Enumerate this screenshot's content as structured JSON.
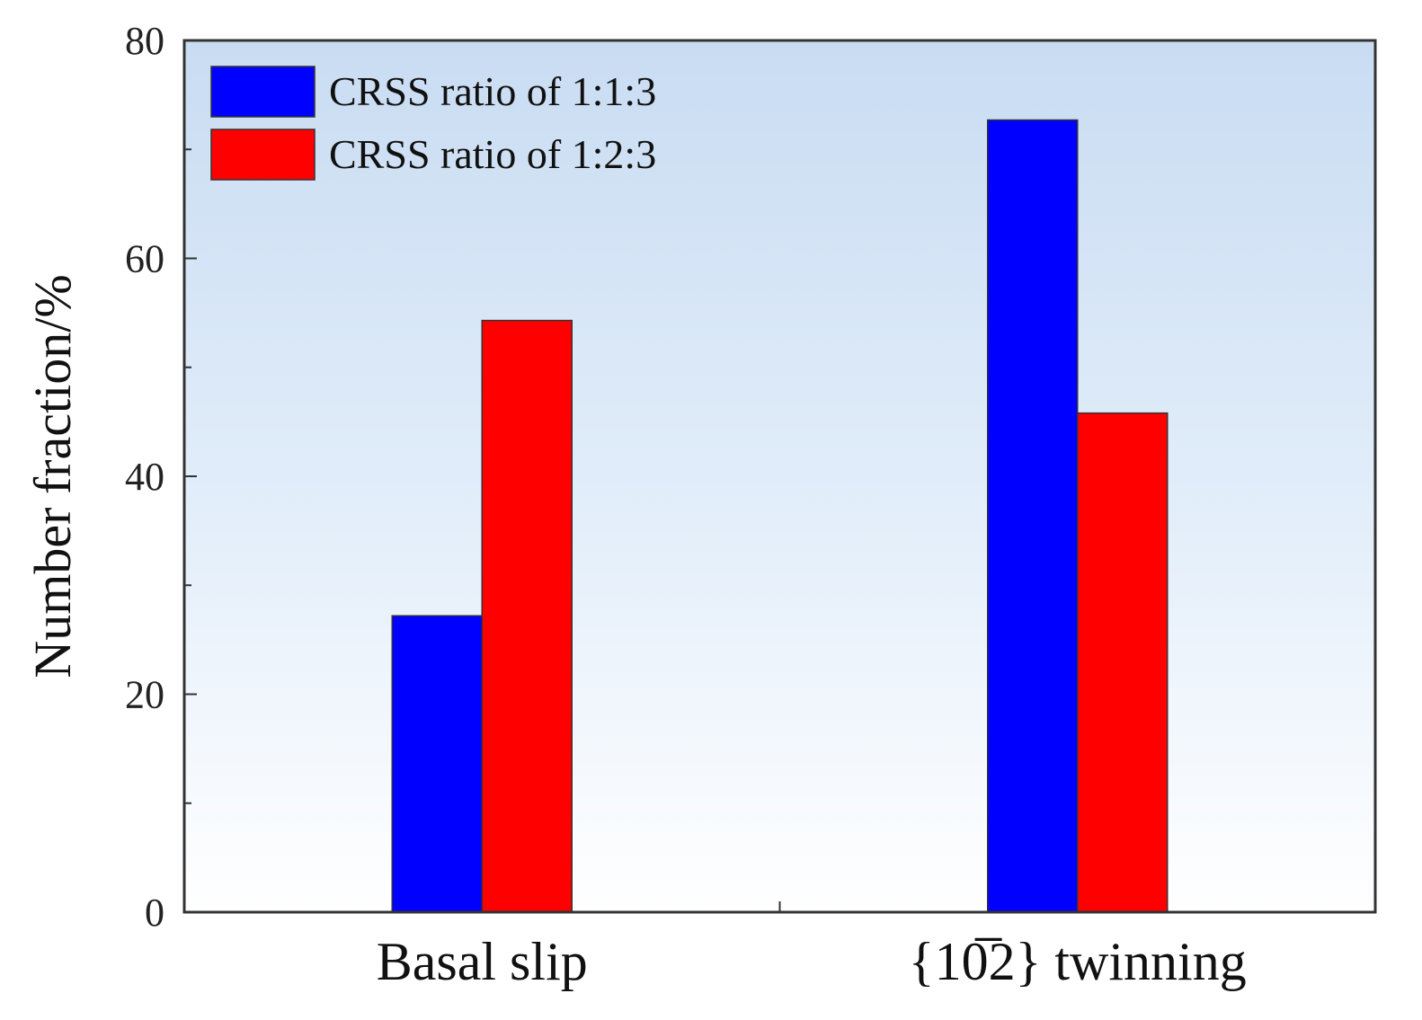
{
  "chart_data": {
    "type": "bar",
    "title": "",
    "xlabel": "",
    "ylabel": "Number fraction/%",
    "ylim": [
      0,
      80
    ],
    "yticks": [
      "0",
      "20",
      "40",
      "60",
      "80"
    ],
    "categories": [
      "Basal slip",
      "{10̅2} twinning"
    ],
    "series": [
      {
        "name": "CRSS ratio of 1:1:3",
        "color": "#0000ff",
        "values": [
          27.2,
          72.7
        ]
      },
      {
        "name": "CRSS ratio of 1:2:3",
        "color": "#ff0000",
        "values": [
          54.3,
          45.8
        ]
      }
    ],
    "legend_position": "top-left",
    "grid": false
  }
}
